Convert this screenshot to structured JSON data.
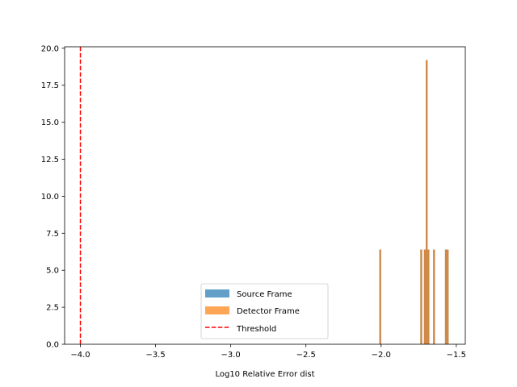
{
  "chart_data": {
    "type": "bar",
    "title": "",
    "xlabel": "Log10 Relative Error dist",
    "ylabel": "",
    "xlim": [
      -4.105,
      -1.44
    ],
    "ylim": [
      0,
      20.1
    ],
    "xticks": [
      -4.0,
      -3.5,
      -3.0,
      -2.5,
      -2.0,
      -1.5
    ],
    "xtick_labels": [
      "−4.0",
      "−3.5",
      "−3.0",
      "−2.5",
      "−2.0",
      "−1.5"
    ],
    "yticks": [
      0.0,
      2.5,
      5.0,
      7.5,
      10.0,
      12.5,
      15.0,
      17.5,
      20.0
    ],
    "ytick_labels": [
      "0.0",
      "2.5",
      "5.0",
      "7.5",
      "10.0",
      "12.5",
      "15.0",
      "17.5",
      "20.0"
    ],
    "grid": false,
    "legend_position": "lower-center",
    "bin_width": 0.0122,
    "series": [
      {
        "name": "Source Frame",
        "kind": "histogram",
        "color": "#1f77b4",
        "alpha": 0.7,
        "bins": [
          {
            "x": -2.006,
            "y": 6.4
          },
          {
            "x": -1.733,
            "y": 6.4
          },
          {
            "x": -1.709,
            "y": 6.4
          },
          {
            "x": -1.697,
            "y": 19.2
          },
          {
            "x": -1.685,
            "y": 6.4
          },
          {
            "x": -1.648,
            "y": 6.4
          },
          {
            "x": -1.569,
            "y": 6.4
          },
          {
            "x": -1.557,
            "y": 6.4
          }
        ]
      },
      {
        "name": "Detector Frame",
        "kind": "histogram",
        "color": "#ff7f0e",
        "alpha": 0.7,
        "bins": [
          {
            "x": -2.006,
            "y": 6.4
          },
          {
            "x": -1.733,
            "y": 6.4
          },
          {
            "x": -1.709,
            "y": 6.4
          },
          {
            "x": -1.697,
            "y": 19.2
          },
          {
            "x": -1.685,
            "y": 6.4
          },
          {
            "x": -1.648,
            "y": 6.4
          },
          {
            "x": -1.569,
            "y": 6.4
          },
          {
            "x": -1.557,
            "y": 6.4
          }
        ]
      },
      {
        "name": "Threshold",
        "kind": "vline",
        "color": "#ff0000",
        "style": "dashed",
        "x": -4.0
      }
    ]
  }
}
